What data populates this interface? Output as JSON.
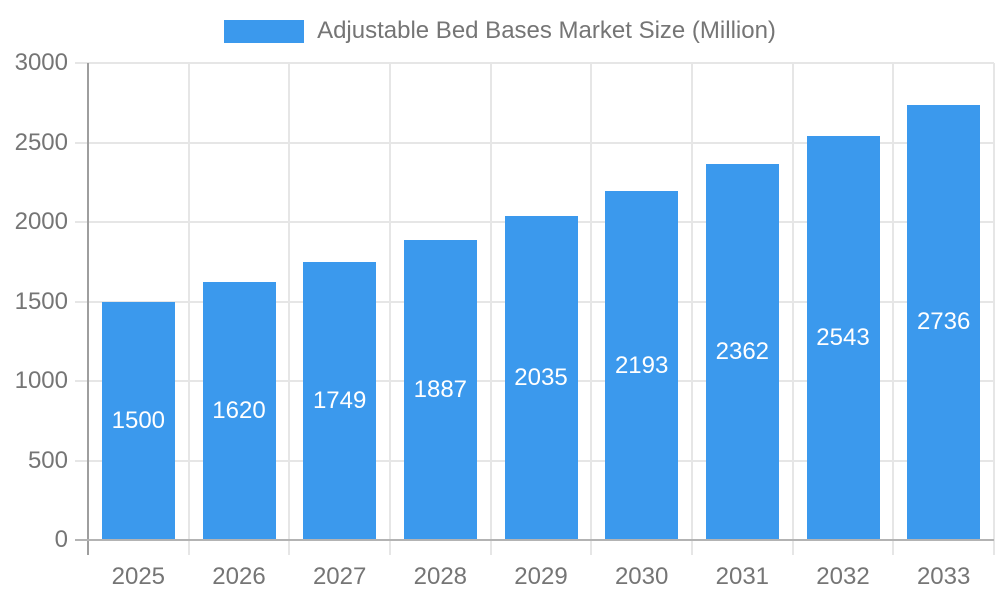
{
  "chart_data": {
    "type": "bar",
    "title": "",
    "legend": {
      "label": "Adjustable Bed Bases Market Size (Million)",
      "position": "top"
    },
    "categories": [
      "2025",
      "2026",
      "2027",
      "2028",
      "2029",
      "2030",
      "2031",
      "2032",
      "2033"
    ],
    "series": [
      {
        "name": "Adjustable Bed Bases Market Size (Million)",
        "values": [
          1500,
          1620,
          1749,
          1887,
          2035,
          2193,
          2362,
          2543,
          2736
        ]
      }
    ],
    "xlabel": "",
    "ylabel": "",
    "ylim": [
      0,
      3000
    ],
    "yticks": [
      0,
      500,
      1000,
      1500,
      2000,
      2500,
      3000
    ],
    "grid": true,
    "value_labels_inside_bars": true,
    "colors": {
      "bar": "#3B99ED",
      "bar_label_text": "#ffffff",
      "axis_text": "#757575",
      "gridline": "#e6e6e6",
      "axis_line": "#9e9e9e",
      "baseline": "#b3b3b3",
      "background": "#ffffff"
    }
  }
}
